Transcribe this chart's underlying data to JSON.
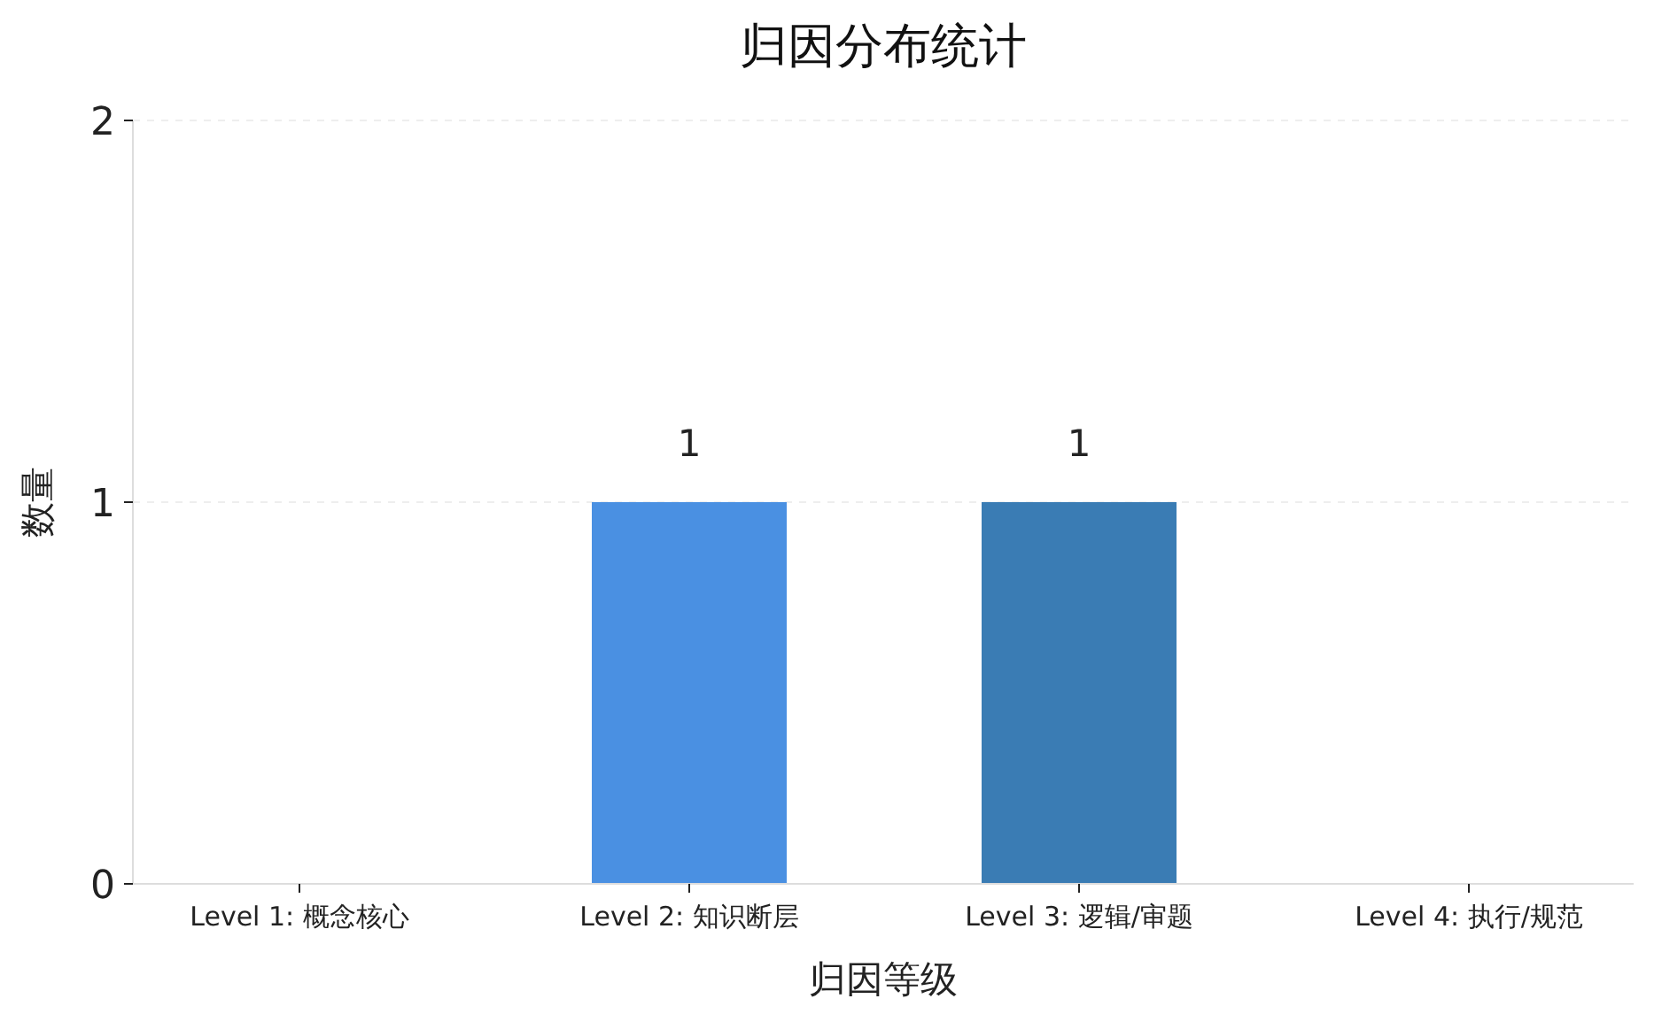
{
  "chart_data": {
    "type": "bar",
    "title": "归因分布统计",
    "xlabel": "归因等级",
    "ylabel": "数量",
    "categories": [
      "Level 1: 概念核心",
      "Level 2: 知识断层",
      "Level 3: 逻辑/审题",
      "Level 4: 执行/规范"
    ],
    "values": [
      0,
      1,
      1,
      0
    ],
    "colors": [
      null,
      "#4a90e2",
      "#3a7cb4",
      null
    ],
    "value_labels": [
      null,
      "1",
      "1",
      null
    ],
    "ylim": [
      0,
      2
    ],
    "yticks": [
      0,
      1,
      2
    ],
    "grid": "y"
  }
}
